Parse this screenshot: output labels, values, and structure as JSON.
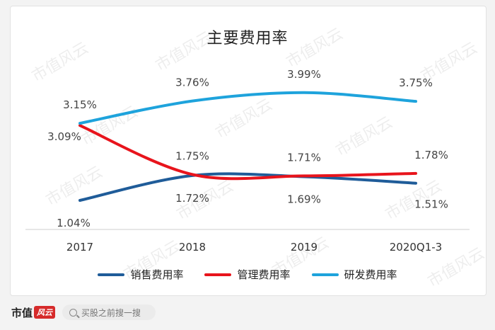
{
  "chart_data": {
    "type": "line",
    "title": "主要费用率",
    "categories": [
      "2017",
      "2018",
      "2019",
      "2020Q1-3"
    ],
    "series": [
      {
        "name": "销售费用率",
        "color": "#1f5c99",
        "values": [
          1.04,
          1.72,
          1.69,
          1.51
        ],
        "labels": [
          "1.04%",
          "1.72%",
          "1.69%",
          "1.51%"
        ]
      },
      {
        "name": "管理费用率",
        "color": "#e8141c",
        "values": [
          3.09,
          1.75,
          1.71,
          1.78
        ],
        "labels": [
          "3.09%",
          "1.75%",
          "1.71%",
          "1.78%"
        ]
      },
      {
        "name": "研发费用率",
        "color": "#1ea3dc",
        "values": [
          3.15,
          3.76,
          3.99,
          3.75
        ],
        "labels": [
          "3.15%",
          "3.76%",
          "3.99%",
          "3.75%"
        ]
      }
    ],
    "grid": false,
    "legend_position": "bottom"
  },
  "watermark": "市值风云",
  "footer": {
    "brand": "市值",
    "brand_mark": "风云",
    "search_placeholder": "买股之前搜一搜"
  }
}
